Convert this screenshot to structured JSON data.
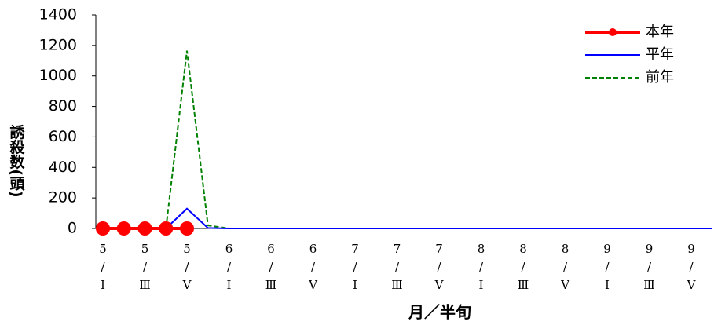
{
  "chart_data": {
    "type": "line",
    "ylabel": "誘殺数(頭)",
    "xlabel": "月／半旬",
    "categories": [
      [
        "5",
        "/",
        "Ⅰ"
      ],
      null,
      [
        "5",
        "/",
        "Ⅲ"
      ],
      null,
      [
        "5",
        "/",
        "Ⅴ"
      ],
      null,
      [
        "6",
        "/",
        "Ⅰ"
      ],
      null,
      [
        "6",
        "/",
        "Ⅲ"
      ],
      null,
      [
        "6",
        "/",
        "Ⅴ"
      ],
      null,
      [
        "7",
        "/",
        "Ⅰ"
      ],
      null,
      [
        "7",
        "/",
        "Ⅲ"
      ],
      null,
      [
        "7",
        "/",
        "Ⅴ"
      ],
      null,
      [
        "8",
        "/",
        "Ⅰ"
      ],
      null,
      [
        "8",
        "/",
        "Ⅲ"
      ],
      null,
      [
        "8",
        "/",
        "Ⅴ"
      ],
      null,
      [
        "9",
        "/",
        "Ⅰ"
      ],
      null,
      [
        "9",
        "/",
        "Ⅲ"
      ],
      null,
      [
        "9",
        "/",
        "Ⅴ"
      ],
      null
    ],
    "series": [
      {
        "name": "本年",
        "color": "#ff0000",
        "marker": true,
        "dash": false,
        "values": [
          0,
          0,
          0,
          0,
          0,
          null,
          null,
          null,
          null,
          null,
          null,
          null,
          null,
          null,
          null,
          null,
          null,
          null,
          null,
          null,
          null,
          null,
          null,
          null,
          null,
          null,
          null,
          null,
          null,
          null
        ]
      },
      {
        "name": "平年",
        "color": "#0000ff",
        "marker": false,
        "dash": false,
        "values": [
          0,
          0,
          0,
          0,
          130,
          3,
          0,
          0,
          0,
          0,
          0,
          0,
          0,
          0,
          0,
          0,
          0,
          0,
          0,
          0,
          0,
          0,
          0,
          0,
          0,
          0,
          0,
          0,
          0,
          0
        ]
      },
      {
        "name": "前年",
        "color": "#008000",
        "marker": false,
        "dash": true,
        "values": [
          0,
          0,
          0,
          0,
          1165,
          20,
          0,
          0,
          0,
          0,
          0,
          0,
          0,
          0,
          0,
          0,
          0,
          0,
          0,
          0,
          0,
          0,
          0,
          0,
          0,
          0,
          0,
          0,
          0,
          0
        ]
      }
    ],
    "ylim": [
      0,
      1400
    ],
    "yticks": [
      0,
      200,
      400,
      600,
      800,
      1000,
      1200,
      1400
    ]
  }
}
